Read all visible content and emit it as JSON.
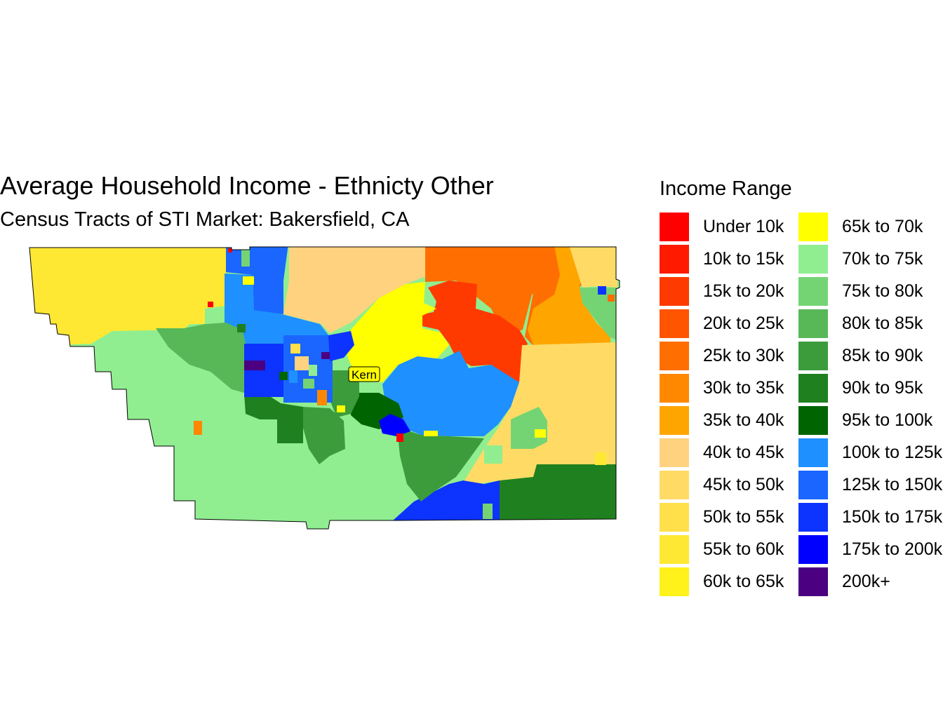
{
  "title": "Average Household Income - Ethnicty Other",
  "subtitle": "Census Tracts of STI Market: Bakersfield, CA",
  "map": {
    "place_label": "Kern"
  },
  "legend": {
    "title": "Income Range",
    "items": [
      {
        "label": "Under 10k",
        "color": "#ff0000"
      },
      {
        "label": "10k to 15k",
        "color": "#ff1a00"
      },
      {
        "label": "15k to 20k",
        "color": "#ff3a00"
      },
      {
        "label": "20k to 25k",
        "color": "#ff5500"
      },
      {
        "label": "25k to 30k",
        "color": "#ff6e00"
      },
      {
        "label": "30k to 35k",
        "color": "#ff8800"
      },
      {
        "label": "35k to 40k",
        "color": "#ffa500"
      },
      {
        "label": "40k to 45k",
        "color": "#ffd27f"
      },
      {
        "label": "45k to 50k",
        "color": "#ffdb66"
      },
      {
        "label": "50k to 55k",
        "color": "#ffe04a"
      },
      {
        "label": "55k to 60k",
        "color": "#ffe833"
      },
      {
        "label": "60k to 65k",
        "color": "#fff21a"
      },
      {
        "label": "65k to 70k",
        "color": "#ffff00"
      },
      {
        "label": "70k to 75k",
        "color": "#90ee90"
      },
      {
        "label": "75k to 80k",
        "color": "#74d474"
      },
      {
        "label": "80k to 85k",
        "color": "#58b858"
      },
      {
        "label": "85k to 90k",
        "color": "#3c9c3c"
      },
      {
        "label": "90k to 95k",
        "color": "#1f801f"
      },
      {
        "label": "95k to 100k",
        "color": "#006400"
      },
      {
        "label": "100k to 125k",
        "color": "#1e90ff"
      },
      {
        "label": "125k to 150k",
        "color": "#1a66ff"
      },
      {
        "label": "150k to 175k",
        "color": "#0d33ff"
      },
      {
        "label": "175k to 200k",
        "color": "#0000ff"
      },
      {
        "label": "200k+",
        "color": "#4b0082"
      }
    ]
  }
}
